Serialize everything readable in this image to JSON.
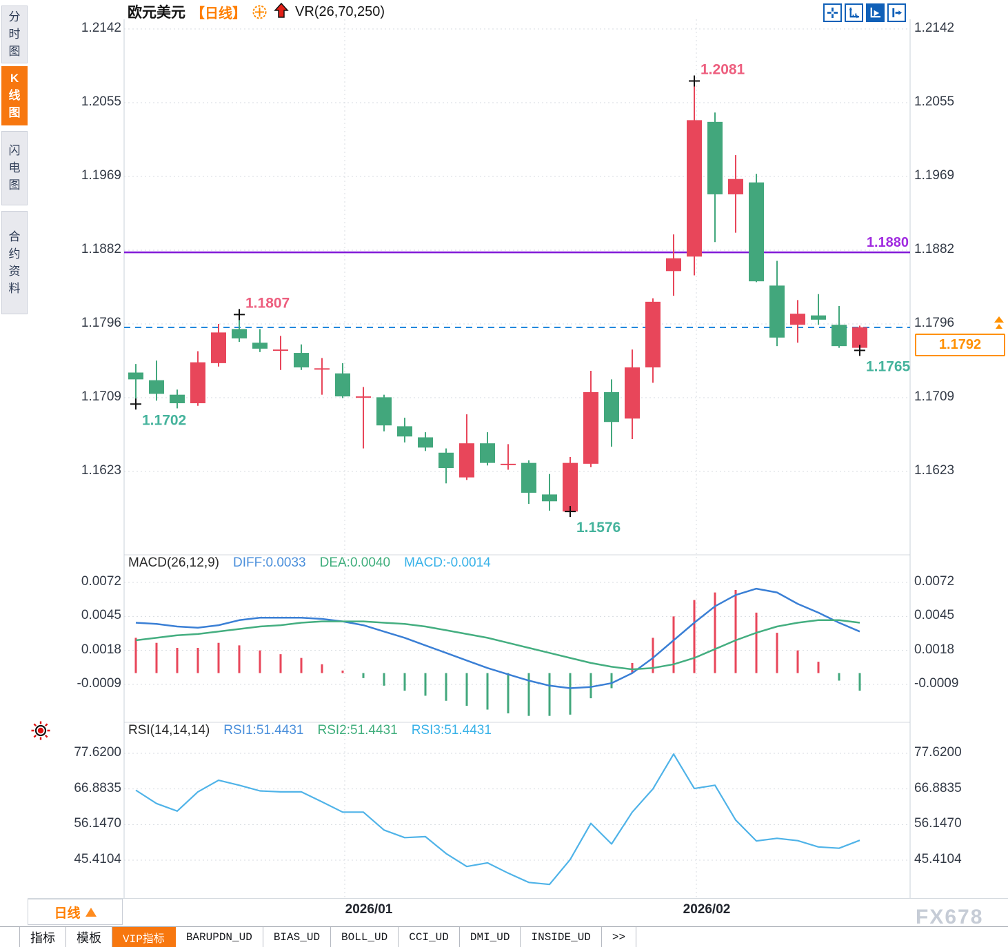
{
  "header": {
    "symbol": "欧元美元",
    "period": "【日线】",
    "vr_label": "VR(26,70,250)"
  },
  "icons": {
    "triangle_up": "▲"
  },
  "sidebar": {
    "items": [
      {
        "label": "分时图",
        "active": false
      },
      {
        "label": "K线图",
        "active": true
      },
      {
        "label": "闪电图",
        "active": false
      },
      {
        "label": "合约资料",
        "active": false
      }
    ]
  },
  "toolbar": {
    "icons": [
      "pan-crosshair",
      "axis-scale",
      "auto-scale-active",
      "jump-to-latest"
    ]
  },
  "axes": {
    "price_ticks": [
      "1.2142",
      "1.2055",
      "1.1969",
      "1.1882",
      "1.1796",
      "1.1709",
      "1.1623"
    ],
    "macd_ticks": [
      "0.0072",
      "0.0045",
      "0.0018",
      "-0.0009"
    ],
    "rsi_ticks": [
      "77.6200",
      "66.8835",
      "56.1470",
      "45.4104"
    ],
    "date_labels": [
      "2026/01",
      "2026/02"
    ]
  },
  "panels": {
    "macd": {
      "title": "MACD(26,12,9)",
      "diff": "DIFF:0.0033",
      "dea": "DEA:0.0040",
      "macd": "MACD:-0.0014"
    },
    "rsi": {
      "title": "RSI(14,14,14)",
      "rsi1": "RSI1:51.4431",
      "rsi2": "RSI2:51.4431",
      "rsi3": "RSI3:51.4431"
    }
  },
  "overlays": {
    "hline_label": "1.1880",
    "current_price": "1.1792"
  },
  "bottom": {
    "period": "日线",
    "tabs": [
      "指标",
      "模板",
      "VIP指标",
      "BARUPDN_UD",
      "BIAS_UD",
      "BOLL_UD",
      "CCI_UD",
      "DMI_UD",
      "INSIDE_UD",
      ">>"
    ],
    "active_tab": "VIP指标"
  },
  "watermark": "FX678",
  "colors": {
    "up": "#e8465a",
    "down": "#42a77c",
    "diff_blue": "#3a7fd5",
    "dea_green": "#44ae80",
    "rsi_blue": "#4fb3e8",
    "purple": "#8018d8",
    "dashed_blue": "#2288dd",
    "high_label": "#ed5e7e",
    "low_label": "#45b39c",
    "grid": "#d7dbe1",
    "border": "#c9d1d9",
    "accent_orange": "#f7770f"
  },
  "chart_data": [
    {
      "type": "candlestick",
      "title": "欧元美元 【日线】 VR(26,70,250)",
      "y_ticks": [
        1.2142,
        1.2055,
        1.1969,
        1.1882,
        1.1796,
        1.1709,
        1.1623
      ],
      "x_labels": [
        "2026/01",
        "2026/02"
      ],
      "grid": true,
      "hline": {
        "value": 1.188,
        "label": "1.1880"
      },
      "current_price": {
        "value": 1.1792,
        "label": "1.1792"
      },
      "annotations": [
        {
          "i": 0,
          "kind": "low",
          "text": "1.1702"
        },
        {
          "i": 5,
          "kind": "high",
          "text": "1.1807"
        },
        {
          "i": 21,
          "kind": "low",
          "text": "1.1576"
        },
        {
          "i": 27,
          "kind": "high",
          "text": "1.2081"
        },
        {
          "i": 35,
          "kind": "low",
          "text": "1.1765"
        }
      ],
      "candles": [
        [
          1.1739,
          1.1749,
          1.1702,
          1.1731
        ],
        [
          1.173,
          1.1753,
          1.1706,
          1.1714
        ],
        [
          1.1713,
          1.1719,
          1.1697,
          1.1703
        ],
        [
          1.1703,
          1.1764,
          1.17,
          1.1751
        ],
        [
          1.175,
          1.1796,
          1.1746,
          1.1786
        ],
        [
          1.179,
          1.1807,
          1.1775,
          1.1779
        ],
        [
          1.1774,
          1.179,
          1.1763,
          1.1767
        ],
        [
          1.1766,
          1.1782,
          1.1742,
          1.1766
        ],
        [
          1.1762,
          1.1772,
          1.1742,
          1.1745
        ],
        [
          1.1744,
          1.1756,
          1.1713,
          1.1744
        ],
        [
          1.1738,
          1.175,
          1.1709,
          1.1711
        ],
        [
          1.1711,
          1.1722,
          1.165,
          1.1711
        ],
        [
          1.171,
          1.1713,
          1.167,
          1.1677
        ],
        [
          1.1676,
          1.1686,
          1.1657,
          1.1664
        ],
        [
          1.1663,
          1.1669,
          1.1647,
          1.1651
        ],
        [
          1.1645,
          1.165,
          1.1609,
          1.1627
        ],
        [
          1.1616,
          1.169,
          1.1613,
          1.1656
        ],
        [
          1.1656,
          1.1669,
          1.163,
          1.1633
        ],
        [
          1.1632,
          1.1655,
          1.1625,
          1.1632
        ],
        [
          1.1633,
          1.1636,
          1.1585,
          1.1598
        ],
        [
          1.1596,
          1.162,
          1.1577,
          1.1588
        ],
        [
          1.1576,
          1.164,
          1.1576,
          1.1633
        ],
        [
          1.1632,
          1.1741,
          1.1628,
          1.1716
        ],
        [
          1.1716,
          1.1731,
          1.1652,
          1.1681
        ],
        [
          1.1685,
          1.1766,
          1.1661,
          1.1745
        ],
        [
          1.1745,
          1.1826,
          1.1727,
          1.1822
        ],
        [
          1.1858,
          1.1901,
          1.1829,
          1.1873
        ],
        [
          1.1875,
          1.2081,
          1.1853,
          1.2035
        ],
        [
          1.2033,
          1.2044,
          1.1892,
          1.1948
        ],
        [
          1.1948,
          1.1994,
          1.1903,
          1.1966
        ],
        [
          1.1962,
          1.1972,
          1.1845,
          1.1846
        ],
        [
          1.1841,
          1.187,
          1.177,
          1.178
        ],
        [
          1.1795,
          1.1824,
          1.1774,
          1.1808
        ],
        [
          1.1806,
          1.1831,
          1.1795,
          1.1801
        ],
        [
          1.1795,
          1.1817,
          1.1768,
          1.177
        ],
        [
          1.1768,
          1.1794,
          1.1765,
          1.1792
        ]
      ]
    },
    {
      "type": "macd",
      "label": "MACD(26,12,9)",
      "y_ticks": [
        0.0072,
        0.0045,
        0.0018,
        -0.0009
      ],
      "diff": [
        0.004,
        0.0039,
        0.0037,
        0.0036,
        0.0038,
        0.0042,
        0.0044,
        0.0044,
        0.0044,
        0.0043,
        0.0041,
        0.0038,
        0.0033,
        0.0028,
        0.0022,
        0.0016,
        0.001,
        0.0004,
        -0.0001,
        -0.0006,
        -0.001,
        -0.0012,
        -0.0011,
        -0.0008,
        0.0,
        0.0012,
        0.0026,
        0.004,
        0.0053,
        0.0062,
        0.0067,
        0.0064,
        0.0055,
        0.0048,
        0.004,
        0.0033
      ],
      "dea": [
        0.0026,
        0.0028,
        0.003,
        0.0031,
        0.0033,
        0.0035,
        0.0037,
        0.0038,
        0.004,
        0.0041,
        0.0041,
        0.0041,
        0.004,
        0.0039,
        0.0037,
        0.0034,
        0.0031,
        0.0028,
        0.0024,
        0.002,
        0.0016,
        0.0012,
        0.0008,
        0.0005,
        0.0003,
        0.0004,
        0.0007,
        0.0012,
        0.0019,
        0.0026,
        0.0032,
        0.0037,
        0.004,
        0.0042,
        0.0042,
        0.004
      ],
      "hist": [
        0.0028,
        0.0024,
        0.002,
        0.002,
        0.0024,
        0.0022,
        0.0018,
        0.0015,
        0.0012,
        0.0007,
        0.0002,
        -0.0004,
        -0.001,
        -0.0014,
        -0.0018,
        -0.0022,
        -0.0026,
        -0.0029,
        -0.0032,
        -0.0034,
        -0.0034,
        -0.0033,
        -0.002,
        -0.0012,
        0.0008,
        0.0028,
        0.0045,
        0.0058,
        0.0064,
        0.0066,
        0.0048,
        0.0032,
        0.0018,
        0.0009,
        -0.0006,
        -0.0014
      ]
    },
    {
      "type": "rsi",
      "label": "RSI(14,14,14)",
      "y_ticks": [
        77.62,
        66.8835,
        56.147,
        45.4104
      ],
      "values": [
        66.5,
        62.5,
        60.2,
        66.0,
        69.5,
        68.0,
        66.3,
        66.0,
        66.0,
        63.0,
        59.9,
        59.9,
        54.5,
        52.2,
        52.5,
        47.4,
        43.5,
        44.6,
        41.5,
        38.7,
        38.1,
        45.6,
        56.5,
        50.3,
        59.9,
        66.9,
        77.4,
        67.0,
        68.0,
        57.5,
        51.2,
        52.0,
        51.3,
        49.4,
        49.0,
        51.4
      ]
    }
  ]
}
